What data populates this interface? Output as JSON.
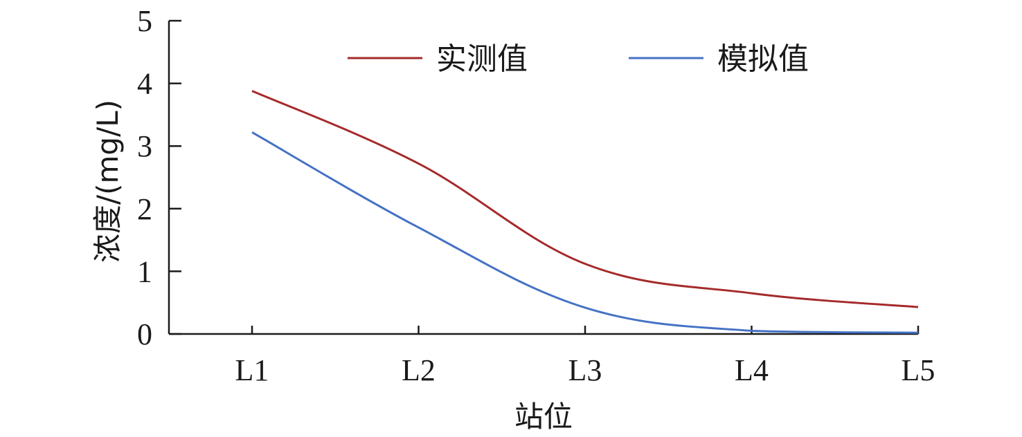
{
  "chart_data": {
    "type": "line",
    "categories": [
      "L1",
      "L2",
      "L3",
      "L4",
      "L5"
    ],
    "series": [
      {
        "name": "实测值",
        "color": "#a52a2a",
        "values": [
          3.88,
          2.72,
          1.12,
          0.65,
          0.43
        ]
      },
      {
        "name": "模拟值",
        "color": "#4472c4",
        "values": [
          3.22,
          1.7,
          0.42,
          0.05,
          0.02
        ]
      }
    ],
    "xlabel": "站位",
    "ylabel": "浓度/(mg/L)",
    "ylim": [
      0,
      5
    ],
    "yticks": [
      0,
      1,
      2,
      3,
      4,
      5
    ],
    "grid": false,
    "legend_position": "top"
  }
}
